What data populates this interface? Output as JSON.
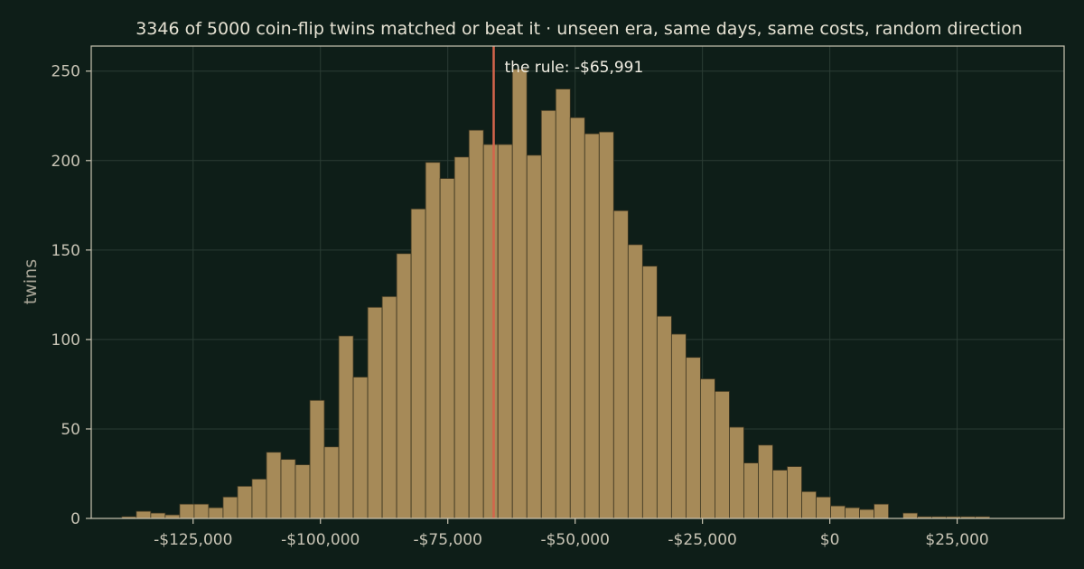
{
  "chart_data": {
    "type": "bar",
    "title": "3346 of 5000 coin-flip twins matched or beat it  ·  unseen era, same days, same costs, random direction",
    "ylabel": "twins",
    "xlabel": "",
    "x_ticks": [
      {
        "value": -125000,
        "label": "-$125,000"
      },
      {
        "value": -100000,
        "label": "-$100,000"
      },
      {
        "value": -75000,
        "label": "-$75,000"
      },
      {
        "value": -50000,
        "label": "-$50,000"
      },
      {
        "value": -25000,
        "label": "-$25,000"
      },
      {
        "value": 0,
        "label": "$0"
      },
      {
        "value": 25000,
        "label": "$25,000"
      }
    ],
    "y_ticks": [
      0,
      50,
      100,
      150,
      200,
      250
    ],
    "xlim": [
      -145000,
      46000
    ],
    "ylim": [
      0,
      264
    ],
    "grid": true,
    "bin_start": -139000,
    "bin_width": 2840,
    "counts": [
      1,
      4,
      3,
      2,
      8,
      8,
      6,
      12,
      18,
      22,
      37,
      33,
      30,
      66,
      40,
      102,
      79,
      118,
      124,
      148,
      173,
      199,
      190,
      202,
      217,
      209,
      209,
      251,
      203,
      228,
      240,
      224,
      215,
      216,
      172,
      153,
      141,
      113,
      103,
      90,
      78,
      71,
      51,
      31,
      41,
      27,
      29,
      15,
      12,
      7,
      6,
      5,
      8,
      0,
      3,
      1,
      1,
      1,
      1,
      1
    ],
    "bar_color": "#a68a58",
    "rule_value": -65991,
    "rule_label": "the rule: -$65,991",
    "rule_color": "#d4654c",
    "background_color": "#0e1e18"
  }
}
